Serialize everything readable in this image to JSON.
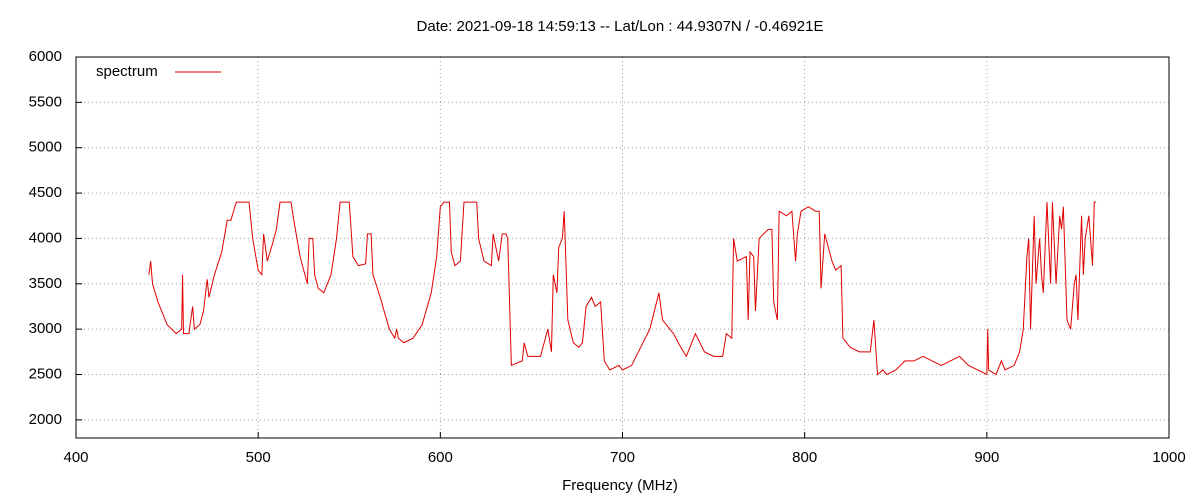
{
  "chart_data": {
    "type": "line",
    "title": "Date: 2021-09-18 14:59:13  --  Lat/Lon : 44.9307N / -0.46921E",
    "x_label": "Frequency (MHz)",
    "xlim": [
      400,
      1000
    ],
    "xticks": [
      400,
      500,
      600,
      700,
      800,
      900,
      1000
    ],
    "ylim": [
      1800,
      6000
    ],
    "yticks": [
      2000,
      2500,
      3000,
      3500,
      4000,
      4500,
      5000,
      5500,
      6000
    ],
    "grid": true,
    "legend": "top-left",
    "x": [
      440,
      441,
      442,
      445,
      450,
      455,
      458,
      458.5,
      459,
      462,
      464,
      465,
      468,
      470,
      472,
      473,
      476,
      480,
      483,
      485,
      488,
      495,
      497,
      500,
      502,
      503,
      505,
      508,
      510,
      512,
      518,
      520,
      523,
      527,
      528,
      530,
      531,
      533,
      536,
      540,
      543,
      545,
      550,
      552,
      555,
      559,
      560,
      562,
      563,
      567,
      572,
      575,
      576,
      577,
      580,
      585,
      590,
      595,
      598,
      600,
      602,
      605,
      606,
      608,
      611,
      613,
      620,
      621,
      624,
      628,
      629,
      632,
      634,
      636,
      637,
      639,
      645,
      646,
      648,
      655,
      659,
      661,
      662,
      664,
      665,
      667,
      668,
      670,
      673,
      676,
      678,
      680,
      683,
      685,
      688,
      690,
      693,
      698,
      700,
      705,
      710,
      715,
      720,
      722,
      728,
      732,
      735,
      740,
      745,
      750,
      755,
      757,
      760,
      761,
      763,
      768,
      769,
      770,
      772,
      773,
      775,
      780,
      782,
      783,
      785,
      786,
      790,
      793,
      795,
      796,
      798,
      802,
      806,
      808,
      809,
      811,
      815,
      817,
      820,
      821,
      825,
      830,
      836,
      838,
      840,
      843,
      845,
      850,
      855,
      860,
      865,
      870,
      875,
      880,
      885,
      890,
      895,
      900,
      900.5,
      901,
      905,
      908,
      910,
      915,
      918,
      920,
      922,
      923,
      924,
      926,
      927,
      929,
      930,
      931,
      933,
      935,
      936,
      938,
      940,
      941,
      942,
      944,
      946,
      948,
      949,
      950,
      952,
      953,
      954,
      956,
      958,
      959,
      960
    ],
    "series": [
      {
        "name": "spectrum",
        "color": "#e00000",
        "values": [
          3600,
          3750,
          3500,
          3300,
          3050,
          2950,
          3000,
          3600,
          2950,
          2950,
          3250,
          3000,
          3050,
          3200,
          3550,
          3350,
          3600,
          3850,
          4200,
          4200,
          4400,
          4400,
          4000,
          3650,
          3600,
          4050,
          3750,
          3950,
          4100,
          4400,
          4400,
          4150,
          3800,
          3500,
          4000,
          4000,
          3600,
          3450,
          3400,
          3600,
          4000,
          4400,
          4400,
          3800,
          3700,
          3720,
          4050,
          4050,
          3600,
          3350,
          3000,
          2900,
          3000,
          2900,
          2850,
          2900,
          3050,
          3400,
          3800,
          4350,
          4400,
          4400,
          3850,
          3700,
          3750,
          4400,
          4400,
          4000,
          3750,
          3700,
          4050,
          3750,
          4050,
          4050,
          4000,
          2600,
          2650,
          2850,
          2700,
          2700,
          3000,
          2750,
          3600,
          3400,
          3900,
          4000,
          4300,
          3100,
          2850,
          2800,
          2850,
          3250,
          3350,
          3250,
          3300,
          2650,
          2550,
          2600,
          2550,
          2600,
          2800,
          3000,
          3400,
          3100,
          2950,
          2800,
          2700,
          2950,
          2750,
          2700,
          2700,
          2950,
          2900,
          4000,
          3750,
          3800,
          3100,
          3850,
          3800,
          3200,
          4000,
          4100,
          4100,
          3300,
          3100,
          4300,
          4250,
          4300,
          3750,
          4050,
          4300,
          4350,
          4300,
          4300,
          3450,
          4050,
          3750,
          3650,
          3700,
          2900,
          2800,
          2750,
          2750,
          3100,
          2500,
          2550,
          2500,
          2550,
          2650,
          2650,
          2700,
          2650,
          2600,
          2650,
          2700,
          2600,
          2550,
          2500,
          3000,
          2550,
          2500,
          2650,
          2550,
          2600,
          2750,
          3000,
          3800,
          4000,
          3000,
          4250,
          3500,
          4000,
          3600,
          3400,
          4400,
          3500,
          4400,
          3500,
          4250,
          4100,
          4350,
          3100,
          3000,
          3500,
          3600,
          3100,
          4250,
          3600,
          4000,
          4250,
          3700,
          4400,
          4400
        ]
      }
    ]
  }
}
